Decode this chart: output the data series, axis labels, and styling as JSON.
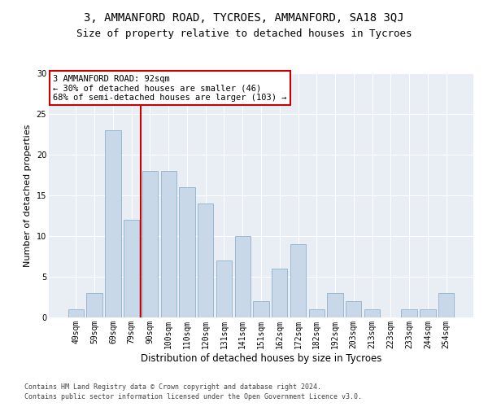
{
  "title1": "3, AMMANFORD ROAD, TYCROES, AMMANFORD, SA18 3QJ",
  "title2": "Size of property relative to detached houses in Tycroes",
  "xlabel": "Distribution of detached houses by size in Tycroes",
  "ylabel": "Number of detached properties",
  "categories": [
    "49sqm",
    "59sqm",
    "69sqm",
    "79sqm",
    "90sqm",
    "100sqm",
    "110sqm",
    "120sqm",
    "131sqm",
    "141sqm",
    "151sqm",
    "162sqm",
    "172sqm",
    "182sqm",
    "192sqm",
    "203sqm",
    "213sqm",
    "223sqm",
    "233sqm",
    "244sqm",
    "254sqm"
  ],
  "values": [
    1,
    3,
    23,
    12,
    18,
    18,
    16,
    14,
    7,
    10,
    2,
    6,
    9,
    1,
    3,
    2,
    1,
    0,
    1,
    1,
    3
  ],
  "bar_color": "#c8d8e8",
  "bar_edge_color": "#7fa8c8",
  "vline_x": 3.5,
  "vline_color": "#cc0000",
  "annotation_text": "3 AMMANFORD ROAD: 92sqm\n← 30% of detached houses are smaller (46)\n68% of semi-detached houses are larger (103) →",
  "annotation_box_color": "#ffffff",
  "annotation_box_edge": "#cc0000",
  "ylim": [
    0,
    30
  ],
  "yticks": [
    0,
    5,
    10,
    15,
    20,
    25,
    30
  ],
  "background_color": "#e8eef4",
  "footer1": "Contains HM Land Registry data © Crown copyright and database right 2024.",
  "footer2": "Contains public sector information licensed under the Open Government Licence v3.0.",
  "title1_fontsize": 10,
  "title2_fontsize": 9,
  "xlabel_fontsize": 8.5,
  "ylabel_fontsize": 8,
  "tick_fontsize": 7,
  "annotation_fontsize": 7.5,
  "footer_fontsize": 6
}
